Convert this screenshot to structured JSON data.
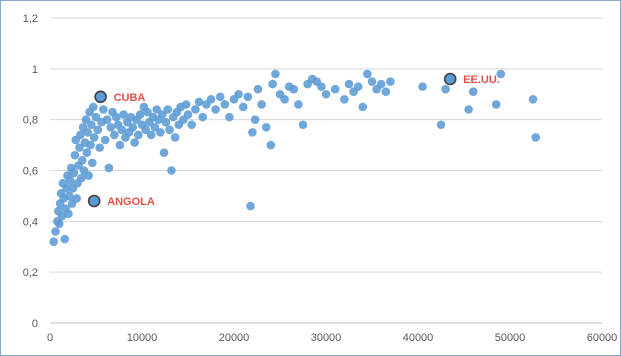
{
  "chart_data": {
    "type": "scatter",
    "title": "",
    "xlabel": "",
    "ylabel": "",
    "xlim": [
      0,
      60000
    ],
    "ylim": [
      0,
      1.2
    ],
    "x_ticks": [
      0,
      10000,
      20000,
      30000,
      40000,
      50000,
      60000
    ],
    "x_tick_labels": [
      "0",
      "10000",
      "20000",
      "30000",
      "40000",
      "50000",
      "60000"
    ],
    "y_ticks": [
      0,
      0.2,
      0.4,
      0.6,
      0.8,
      1,
      1.2
    ],
    "y_tick_labels": [
      "0",
      "0,2",
      "0,4",
      "0,6",
      "0,8",
      "1",
      "1,2"
    ],
    "grid": "horizontal",
    "colors": {
      "points": "#5b9bd5",
      "highlight_stroke": "#404040",
      "annotation": "#e8504a",
      "grid": "#d9d9d9"
    },
    "highlighted": [
      {
        "label": "CUBA",
        "x": 5500,
        "y": 0.89
      },
      {
        "label": "ANGOLA",
        "x": 4800,
        "y": 0.48
      },
      {
        "label": "EE.UU.",
        "x": 43500,
        "y": 0.96
      }
    ],
    "points": [
      [
        400,
        0.32
      ],
      [
        600,
        0.36
      ],
      [
        800,
        0.4
      ],
      [
        900,
        0.44
      ],
      [
        1000,
        0.39
      ],
      [
        1100,
        0.47
      ],
      [
        1200,
        0.51
      ],
      [
        1300,
        0.42
      ],
      [
        1400,
        0.55
      ],
      [
        1500,
        0.49
      ],
      [
        1600,
        0.33
      ],
      [
        1700,
        0.45
      ],
      [
        1800,
        0.53
      ],
      [
        1900,
        0.58
      ],
      [
        2000,
        0.43
      ],
      [
        2100,
        0.5
      ],
      [
        2200,
        0.56
      ],
      [
        2300,
        0.61
      ],
      [
        2400,
        0.47
      ],
      [
        2500,
        0.53
      ],
      [
        2600,
        0.59
      ],
      [
        2700,
        0.66
      ],
      [
        2800,
        0.72
      ],
      [
        2900,
        0.49
      ],
      [
        3000,
        0.55
      ],
      [
        3100,
        0.62
      ],
      [
        3200,
        0.69
      ],
      [
        3300,
        0.74
      ],
      [
        3400,
        0.57
      ],
      [
        3500,
        0.64
      ],
      [
        3600,
        0.77
      ],
      [
        3700,
        0.6
      ],
      [
        3800,
        0.71
      ],
      [
        3900,
        0.8
      ],
      [
        4000,
        0.67
      ],
      [
        4100,
        0.75
      ],
      [
        4200,
        0.58
      ],
      [
        4300,
        0.83
      ],
      [
        4400,
        0.7
      ],
      [
        4500,
        0.78
      ],
      [
        4600,
        0.63
      ],
      [
        4700,
        0.85
      ],
      [
        4800,
        0.73
      ],
      [
        5000,
        0.81
      ],
      [
        5200,
        0.76
      ],
      [
        5400,
        0.69
      ],
      [
        5600,
        0.79
      ],
      [
        5800,
        0.84
      ],
      [
        6000,
        0.72
      ],
      [
        6200,
        0.8
      ],
      [
        6400,
        0.61
      ],
      [
        6600,
        0.77
      ],
      [
        6800,
        0.83
      ],
      [
        7000,
        0.74
      ],
      [
        7200,
        0.81
      ],
      [
        7400,
        0.78
      ],
      [
        7600,
        0.7
      ],
      [
        7800,
        0.76
      ],
      [
        8000,
        0.82
      ],
      [
        8200,
        0.73
      ],
      [
        8400,
        0.79
      ],
      [
        8600,
        0.75
      ],
      [
        8800,
        0.81
      ],
      [
        9000,
        0.77
      ],
      [
        9200,
        0.71
      ],
      [
        9400,
        0.8
      ],
      [
        9600,
        0.74
      ],
      [
        9800,
        0.82
      ],
      [
        10000,
        0.78
      ],
      [
        10200,
        0.85
      ],
      [
        10400,
        0.76
      ],
      [
        10600,
        0.83
      ],
      [
        10800,
        0.79
      ],
      [
        11000,
        0.74
      ],
      [
        11200,
        0.81
      ],
      [
        11400,
        0.77
      ],
      [
        11600,
        0.84
      ],
      [
        11800,
        0.8
      ],
      [
        12000,
        0.75
      ],
      [
        12200,
        0.82
      ],
      [
        12400,
        0.67
      ],
      [
        12600,
        0.79
      ],
      [
        12800,
        0.84
      ],
      [
        13000,
        0.76
      ],
      [
        13200,
        0.6
      ],
      [
        13400,
        0.81
      ],
      [
        13600,
        0.73
      ],
      [
        13800,
        0.83
      ],
      [
        14000,
        0.78
      ],
      [
        14200,
        0.85
      ],
      [
        14500,
        0.8
      ],
      [
        14800,
        0.86
      ],
      [
        15000,
        0.82
      ],
      [
        15400,
        0.78
      ],
      [
        15800,
        0.84
      ],
      [
        16200,
        0.87
      ],
      [
        16600,
        0.81
      ],
      [
        17000,
        0.86
      ],
      [
        17500,
        0.88
      ],
      [
        18000,
        0.84
      ],
      [
        18500,
        0.89
      ],
      [
        19000,
        0.86
      ],
      [
        19500,
        0.81
      ],
      [
        20000,
        0.88
      ],
      [
        20500,
        0.9
      ],
      [
        21000,
        0.85
      ],
      [
        21500,
        0.89
      ],
      [
        21800,
        0.46
      ],
      [
        22000,
        0.75
      ],
      [
        22300,
        0.8
      ],
      [
        22600,
        0.92
      ],
      [
        23000,
        0.86
      ],
      [
        23500,
        0.77
      ],
      [
        24000,
        0.7
      ],
      [
        24200,
        0.94
      ],
      [
        24500,
        0.98
      ],
      [
        25000,
        0.9
      ],
      [
        25500,
        0.88
      ],
      [
        26000,
        0.93
      ],
      [
        26500,
        0.92
      ],
      [
        27000,
        0.86
      ],
      [
        27500,
        0.78
      ],
      [
        28000,
        0.94
      ],
      [
        28500,
        0.96
      ],
      [
        29000,
        0.95
      ],
      [
        29500,
        0.93
      ],
      [
        30000,
        0.9
      ],
      [
        31000,
        0.92
      ],
      [
        32000,
        0.88
      ],
      [
        32500,
        0.94
      ],
      [
        33000,
        0.91
      ],
      [
        33500,
        0.93
      ],
      [
        34000,
        0.85
      ],
      [
        34500,
        0.98
      ],
      [
        35000,
        0.95
      ],
      [
        35500,
        0.92
      ],
      [
        36000,
        0.94
      ],
      [
        36500,
        0.91
      ],
      [
        37000,
        0.95
      ],
      [
        40500,
        0.93
      ],
      [
        42500,
        0.78
      ],
      [
        43000,
        0.92
      ],
      [
        45500,
        0.84
      ],
      [
        46000,
        0.91
      ],
      [
        48500,
        0.86
      ],
      [
        49000,
        0.98
      ],
      [
        52500,
        0.88
      ],
      [
        52800,
        0.73
      ]
    ]
  }
}
